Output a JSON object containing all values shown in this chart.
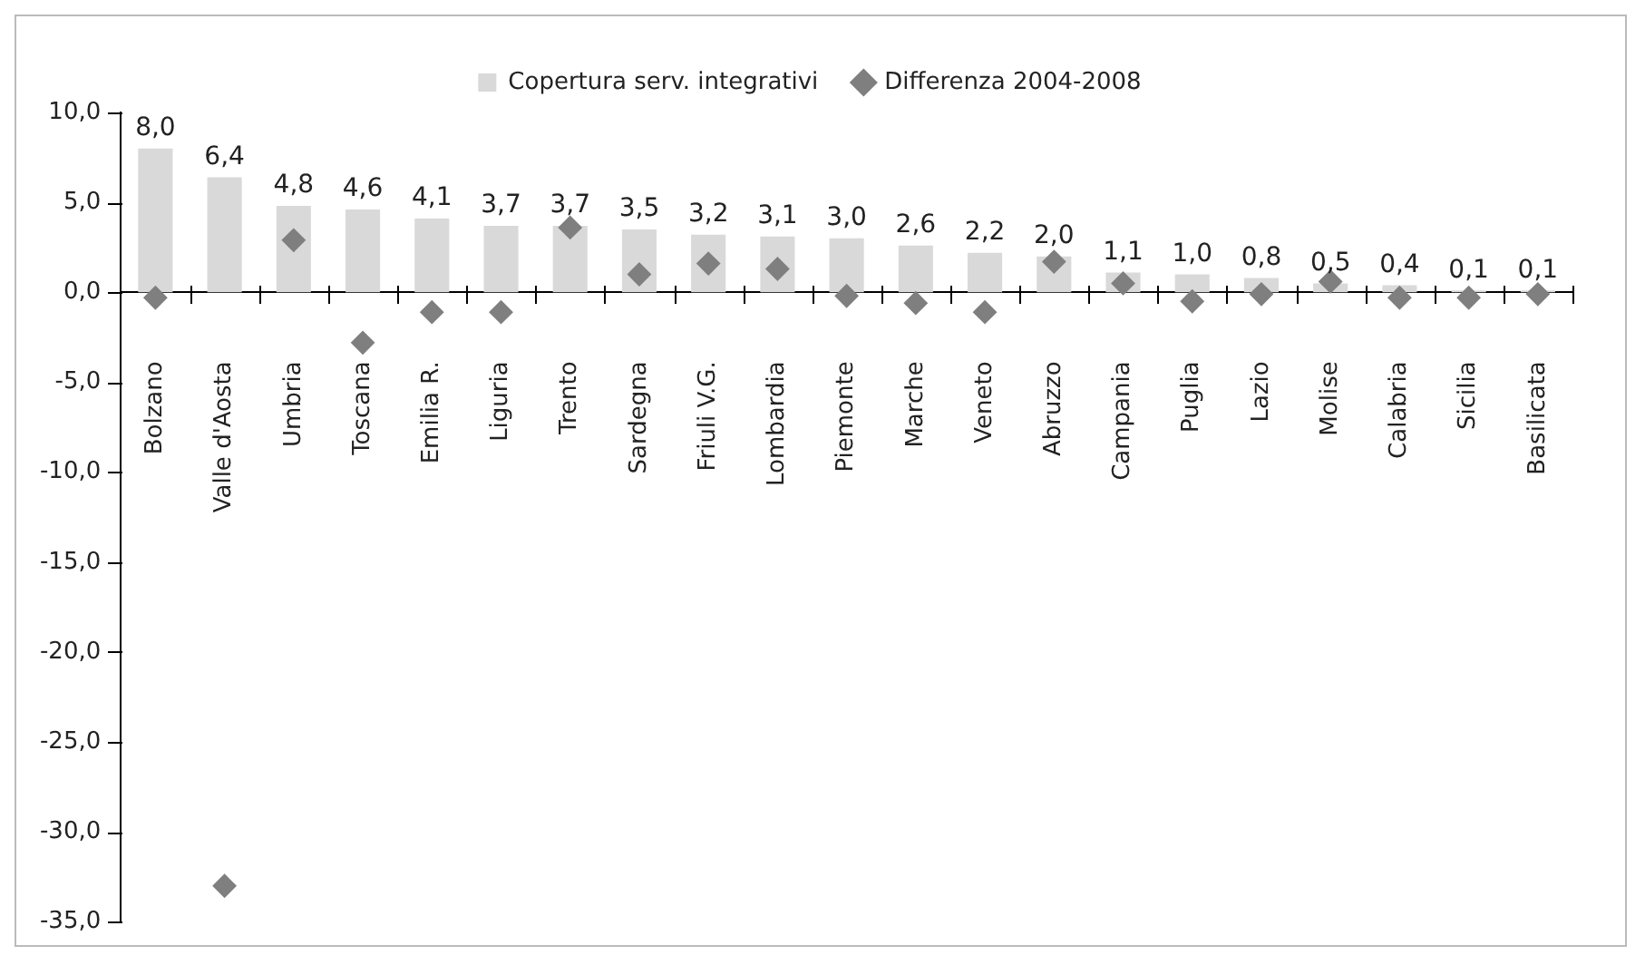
{
  "chart_data": {
    "type": "bar",
    "categories": [
      "Bolzano",
      "Valle d'Aosta",
      "Umbria",
      "Toscana",
      "Emilia R.",
      "Liguria",
      "Trento",
      "Sardegna",
      "Friuli V.G.",
      "Lombardia",
      "Piemonte",
      "Marche",
      "Veneto",
      "Abruzzo",
      "Campania",
      "Puglia",
      "Lazio",
      "Molise",
      "Calabria",
      "Sicilia",
      "Basilicata"
    ],
    "series": [
      {
        "name": "Copertura serv. integrativi",
        "color": "#d9d9d9",
        "value_labels": [
          "8,0",
          "6,4",
          "4,8",
          "4,6",
          "4,1",
          "3,7",
          "3,7",
          "3,5",
          "3,2",
          "3,1",
          "3,0",
          "2,6",
          "2,2",
          "2,0",
          "1,1",
          "1,0",
          "0,8",
          "0,5",
          "0,4",
          "0,1",
          "0,1"
        ],
        "values": [
          8.0,
          6.4,
          4.8,
          4.6,
          4.1,
          3.7,
          3.7,
          3.5,
          3.2,
          3.1,
          3.0,
          2.6,
          2.2,
          2.0,
          1.1,
          1.0,
          0.8,
          0.5,
          0.4,
          0.1,
          0.1
        ]
      },
      {
        "name": "Differenza 2004-2008",
        "type": "scatter",
        "color": "#7f7f7f",
        "marker": "diamond",
        "values": [
          -0.3,
          -33.0,
          2.9,
          -2.8,
          -1.1,
          -1.1,
          3.6,
          1.0,
          1.6,
          1.3,
          -0.2,
          -0.6,
          -1.1,
          1.7,
          0.5,
          -0.5,
          -0.1,
          0.6,
          -0.3,
          -0.3,
          -0.1
        ]
      }
    ],
    "ylim": [
      -35,
      10
    ],
    "yticks": [
      {
        "value": 10,
        "label": "10,0"
      },
      {
        "value": 5,
        "label": "5,0"
      },
      {
        "value": 0,
        "label": "0,0"
      },
      {
        "value": -5,
        "label": "-5,0"
      },
      {
        "value": -10,
        "label": "-10,0"
      },
      {
        "value": -15,
        "label": "-15,0"
      },
      {
        "value": -20,
        "label": "-20,0"
      },
      {
        "value": -25,
        "label": "-25,0"
      },
      {
        "value": -30,
        "label": "-30,0"
      },
      {
        "value": -35,
        "label": "-35,0"
      }
    ],
    "legend": "top"
  }
}
